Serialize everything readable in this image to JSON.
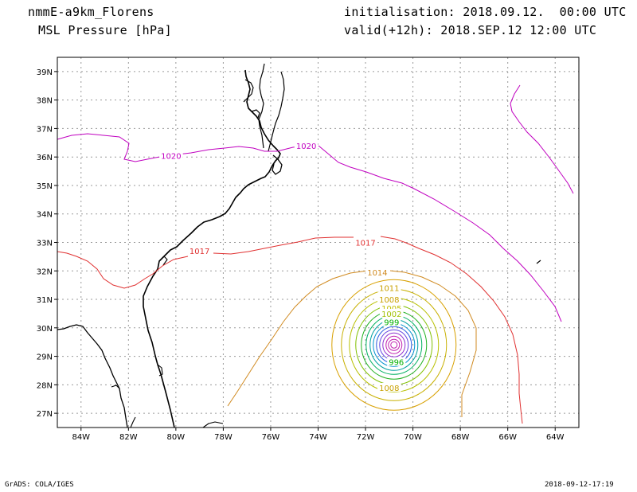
{
  "header": {
    "model": "nmmE-a9km_Florens",
    "field": "MSL Pressure [hPa]",
    "init": "initialisation: 2018.09.12.  00:00 UTC",
    "valid": "valid(+12h): 2018.SEP.12 12:00 UTC"
  },
  "footer": {
    "credit": "GrADS: COLA/IGES",
    "timestamp": "2018-09-12-17:19"
  },
  "map": {
    "lon_range": [
      -85,
      -63
    ],
    "lat_range": [
      26.5,
      39.5
    ],
    "lon_ticks": [
      -84,
      -82,
      -80,
      -78,
      -76,
      -74,
      -72,
      -70,
      -68,
      -66,
      -64
    ],
    "lon_labels": [
      "84W",
      "82W",
      "80W",
      "78W",
      "76W",
      "74W",
      "72W",
      "70W",
      "68W",
      "66W",
      "64W"
    ],
    "lat_ticks": [
      27,
      28,
      29,
      30,
      31,
      32,
      33,
      34,
      35,
      36,
      37,
      38,
      39
    ],
    "lat_labels": [
      "27N",
      "28N",
      "29N",
      "30N",
      "31N",
      "32N",
      "33N",
      "34N",
      "35N",
      "36N",
      "37N",
      "38N",
      "39N"
    ],
    "grid": true,
    "cyclone_center": {
      "lon": -70.8,
      "lat": 29.4
    },
    "contour_labels": [
      {
        "text": "1020",
        "lon": -80.2,
        "lat": 36.05,
        "color": "#c000c0"
      },
      {
        "text": "1020",
        "lon": -74.5,
        "lat": 36.4,
        "color": "#c000c0"
      },
      {
        "text": "1017",
        "lon": -79.0,
        "lat": 32.7,
        "color": "#e03030"
      },
      {
        "text": "1017",
        "lon": -72.0,
        "lat": 33.0,
        "color": "#e03030"
      },
      {
        "text": "1014",
        "lon": -71.5,
        "lat": 31.95,
        "color": "#d08a20"
      },
      {
        "text": "1011",
        "lon": -71.0,
        "lat": 31.4,
        "color": "#c8a000"
      },
      {
        "text": "1008",
        "lon": -71.0,
        "lat": 31.0,
        "color": "#c8a000"
      },
      {
        "text": "1005",
        "lon": -70.9,
        "lat": 30.7,
        "color": "#c0c000"
      },
      {
        "text": "1002",
        "lon": -70.9,
        "lat": 30.5,
        "color": "#a0c000"
      },
      {
        "text": "999",
        "lon": -70.9,
        "lat": 30.2,
        "color": "#00b000"
      },
      {
        "text": "996",
        "lon": -70.7,
        "lat": 28.8,
        "color": "#00b000"
      },
      {
        "text": "1008",
        "lon": -71.0,
        "lat": 27.9,
        "color": "#c8a000"
      }
    ]
  },
  "colors": {
    "c1020": "#c000c0",
    "c1017": "#e03030",
    "c1014": "#d08a20",
    "c1011": "#d8a000",
    "c1008": "#c8b000",
    "c1005": "#b8c000",
    "c1002": "#80c000",
    "c999": "#20b020",
    "c996": "#00b060",
    "c993": "#00a0a0",
    "c990": "#0090d0",
    "c987": "#3060e0",
    "c984": "#6040e0",
    "c981": "#9030d0",
    "c978": "#c020b0"
  }
}
